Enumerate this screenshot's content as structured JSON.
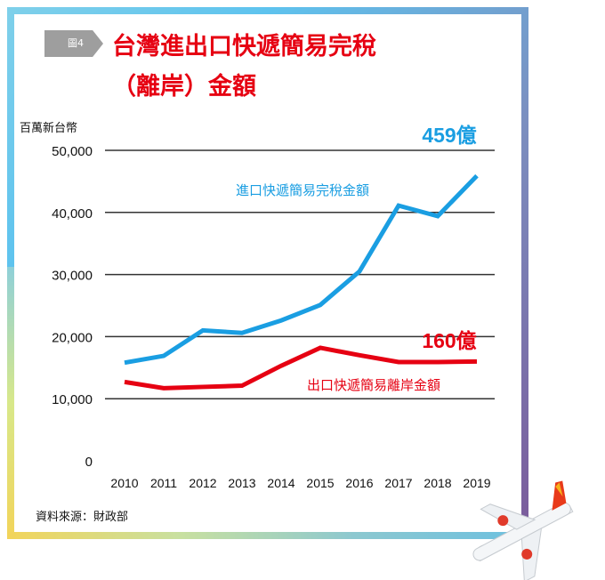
{
  "header": {
    "tag": "圖4",
    "title_line1": "台灣進出口快遞簡易完稅",
    "title_line2": "（離岸）金額"
  },
  "source": "資料來源：財政部",
  "colors": {
    "import": "#1a9ee2",
    "export": "#e60012",
    "title": "#e60012"
  },
  "chart_data": {
    "type": "line",
    "title": "台灣進出口快遞簡易完稅（離岸）金額",
    "ylabel": "百萬新台幣",
    "xlabel": "",
    "ylim": [
      0,
      50000
    ],
    "yticks": [
      "0",
      "10,000",
      "20,000",
      "30,000",
      "40,000",
      "50,000"
    ],
    "ytick_values": [
      0,
      10000,
      20000,
      30000,
      40000,
      50000
    ],
    "x": [
      "2010",
      "2011",
      "2012",
      "2013",
      "2014",
      "2015",
      "2016",
      "2017",
      "2018",
      "2019"
    ],
    "grid": true,
    "series": [
      {
        "name": "進口快遞簡易完稅金額",
        "color": "#1a9ee2",
        "values": [
          15800,
          16900,
          21000,
          20600,
          22600,
          25100,
          30500,
          41100,
          39400,
          45900
        ],
        "end_label": "459億"
      },
      {
        "name": "出口快遞簡易離岸金額",
        "color": "#e60012",
        "values": [
          12700,
          11700,
          11900,
          12100,
          15300,
          18200,
          17000,
          15900,
          15900,
          16000
        ],
        "end_label": "160億"
      }
    ]
  }
}
